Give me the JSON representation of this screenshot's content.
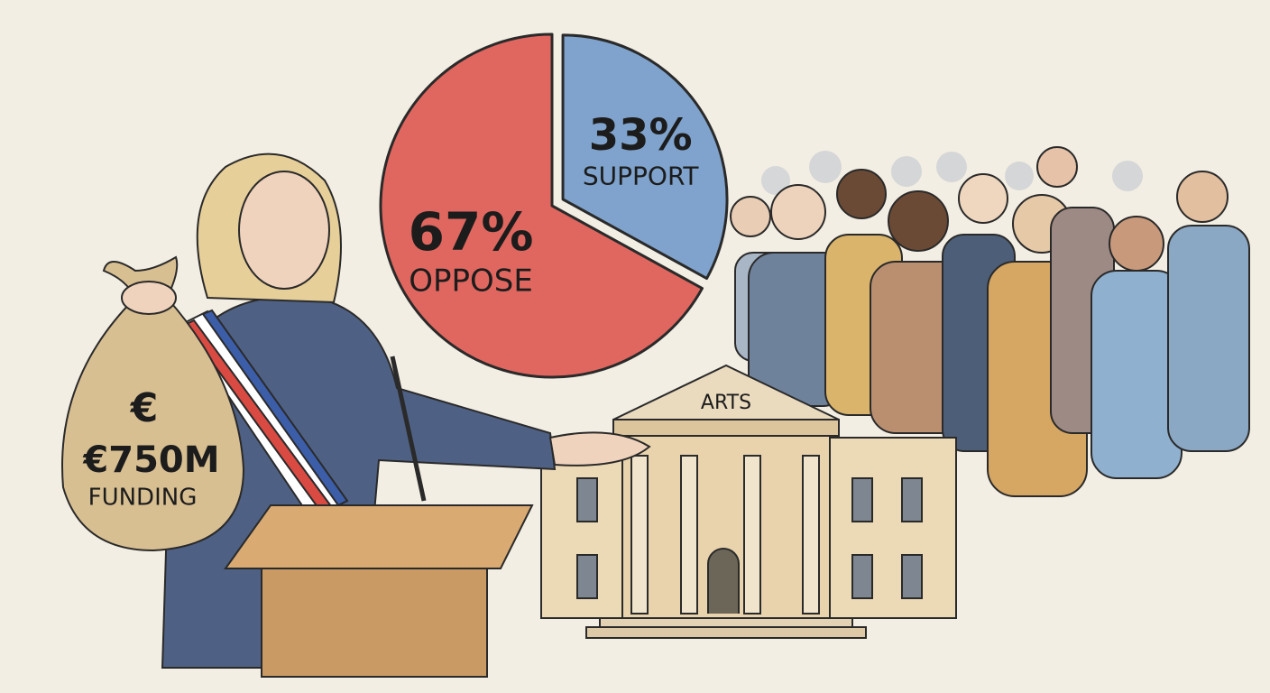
{
  "chart_data": {
    "type": "pie",
    "categories": [
      "OPPOSE",
      "SUPPORT"
    ],
    "values": [
      67,
      33
    ],
    "value_labels": [
      "67%",
      "33%"
    ],
    "colors": [
      "#e0675f",
      "#7fa3cc"
    ],
    "annotations": [
      "€",
      "€750M",
      "FUNDING",
      "ARTS"
    ]
  }
}
